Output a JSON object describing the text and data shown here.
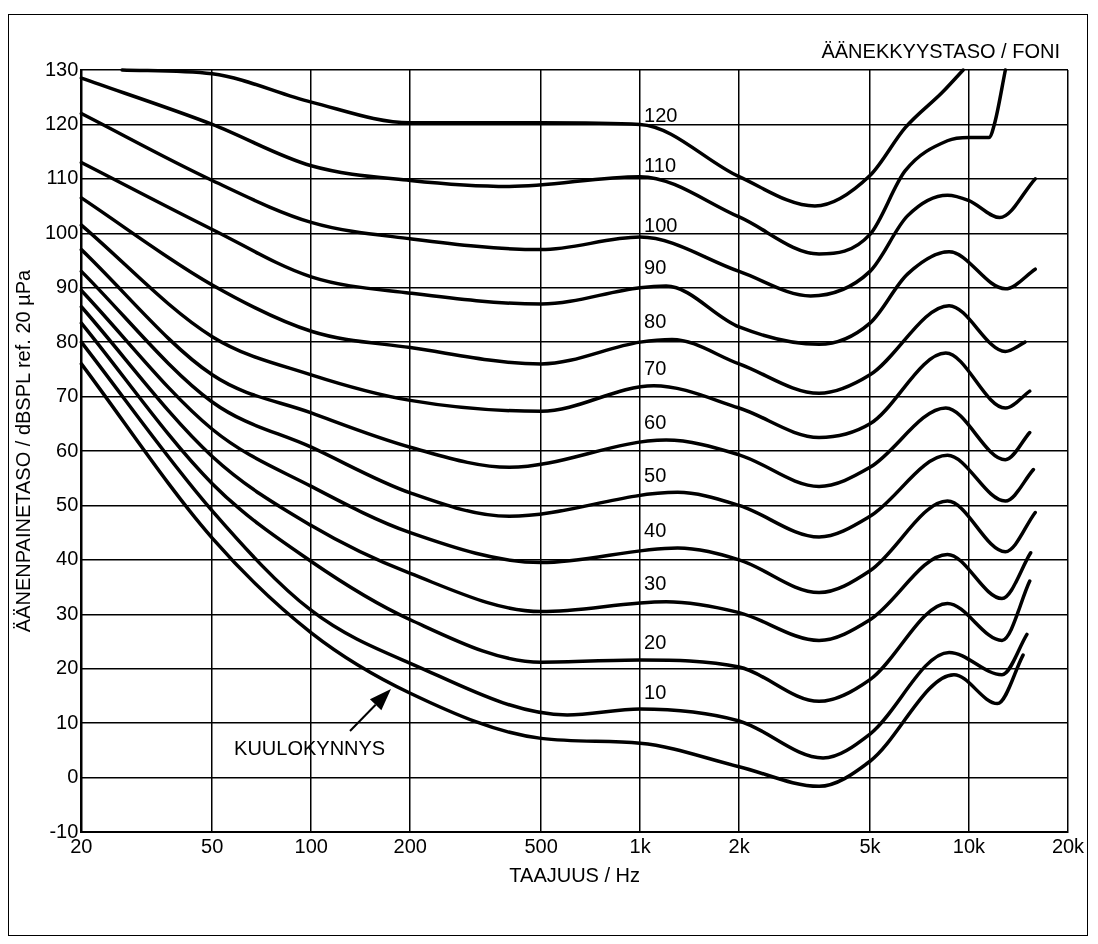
{
  "chart_data": {
    "type": "line",
    "xlabel": "TAAJUUS / Hz",
    "ylabel": "ÄÄNENPAINETASO / dBSPL ref. 20 µPa",
    "legend_title": "ÄÄNEKKYYSTASO / FONI",
    "log": "x",
    "grid": true,
    "legend": false,
    "xlim": [
      20,
      20000
    ],
    "ylim": [
      -10,
      130
    ],
    "xticks": [
      20,
      50,
      100,
      200,
      500,
      {
        "value": 1000,
        "label": "1k"
      },
      {
        "value": 2000,
        "label": "2k"
      },
      {
        "value": 5000,
        "label": "5k"
      },
      {
        "value": 10000,
        "label": "10k"
      },
      {
        "value": 20000,
        "label": "20k"
      }
    ],
    "yticks": [
      -10,
      0,
      10,
      20,
      30,
      40,
      50,
      60,
      70,
      80,
      90,
      100,
      110,
      120,
      130
    ],
    "annotations": [
      {
        "text": "KUULOKYNNYS",
        "x": 180,
        "y": 17
      }
    ],
    "series": [
      {
        "name": "120",
        "color": "#000000",
        "x": [
          26.6,
          50,
          100,
          200,
          500,
          1000,
          2000,
          3400,
          5000,
          6400,
          8300,
          9600
        ],
        "values": [
          130,
          129.3,
          124.1,
          120.3,
          120.3,
          120,
          110.4,
          105,
          110.6,
          119.4,
          125.9,
          130
        ]
      },
      {
        "name": "110",
        "color": "#000000",
        "x": [
          20,
          50,
          100,
          200,
          400,
          1000,
          2000,
          3500,
          5000,
          6400,
          8600,
          10000,
          11500,
          12000,
          12900
        ],
        "values": [
          128.5,
          120,
          112.4,
          109.7,
          108.6,
          110.4,
          103,
          96.2,
          99.8,
          111.5,
          117,
          117.6,
          117.6,
          120.5,
          130
        ]
      },
      {
        "name": "100",
        "color": "#000000",
        "x": [
          20,
          50,
          100,
          200,
          500,
          1000,
          2000,
          3300,
          5000,
          6500,
          8600,
          10000,
          12400,
          15900
        ],
        "values": [
          122,
          109.7,
          102,
          99,
          97,
          99.3,
          93,
          88.5,
          93,
          103.2,
          107,
          106,
          102.9,
          110
        ]
      },
      {
        "name": "90",
        "color": "#000000",
        "x": [
          20,
          50,
          100,
          200,
          500,
          1000,
          1200,
          2000,
          3500,
          5000,
          6500,
          8700,
          12900,
          15900
        ],
        "values": [
          113,
          100.7,
          92,
          89,
          87,
          90,
          90.3,
          82.8,
          79.6,
          83.5,
          92.5,
          96.6,
          89.8,
          93.4
        ]
      },
      {
        "name": "80",
        "color": "#000000",
        "x": [
          20,
          50,
          100,
          200,
          500,
          1000,
          1250,
          2000,
          3500,
          5000,
          8700,
          12900,
          14800
        ],
        "values": [
          106.5,
          90.5,
          82,
          79,
          76,
          80,
          80.5,
          76,
          70.6,
          74,
          86.7,
          78.3,
          80
        ]
      },
      {
        "name": "70",
        "color": "#000000",
        "x": [
          20,
          50,
          100,
          200,
          500,
          1100,
          2000,
          3500,
          5000,
          8500,
          12900,
          15300
        ],
        "values": [
          101.5,
          81,
          74,
          69.3,
          67.3,
          72,
          67.9,
          62.5,
          65,
          78,
          67.9,
          71
        ]
      },
      {
        "name": "60",
        "color": "#000000",
        "x": [
          20,
          50,
          100,
          200,
          400,
          1200,
          2000,
          3500,
          5000,
          8500,
          12900,
          15300
        ],
        "values": [
          97,
          74,
          67,
          60.7,
          57,
          62,
          59.3,
          53.5,
          57,
          67.9,
          58.4,
          63.4
        ]
      },
      {
        "name": "50",
        "color": "#000000",
        "x": [
          20,
          50,
          100,
          200,
          400,
          1300,
          2000,
          3500,
          5000,
          8600,
          12900,
          15700
        ],
        "values": [
          93,
          69,
          60.7,
          52.3,
          48,
          52.4,
          50,
          44.2,
          48,
          59.2,
          50.8,
          56.6
        ]
      },
      {
        "name": "40",
        "color": "#000000",
        "x": [
          20,
          50,
          100,
          200,
          500,
          1300,
          2000,
          3500,
          5000,
          8600,
          12900,
          15900
        ],
        "values": [
          89.5,
          64,
          53.5,
          45,
          39.5,
          42.2,
          40,
          34,
          38,
          50.8,
          41.5,
          48.7
        ]
      },
      {
        "name": "30",
        "color": "#000000",
        "x": [
          20,
          50,
          100,
          200,
          500,
          1200,
          2000,
          3500,
          5000,
          8600,
          12600,
          15400
        ],
        "values": [
          86.5,
          59,
          46.3,
          37.5,
          30.5,
          32.3,
          30.3,
          25.2,
          29,
          41,
          32.9,
          41.3
        ]
      },
      {
        "name": "20",
        "color": "#000000",
        "x": [
          20,
          50,
          100,
          200,
          500,
          1000,
          2000,
          3500,
          5000,
          8600,
          12600,
          15300
        ],
        "values": [
          83.5,
          54,
          39.7,
          29,
          21.2,
          21.6,
          20.3,
          14,
          18,
          32,
          25.2,
          36.1
        ]
      },
      {
        "name": "10",
        "color": "#000000",
        "x": [
          20,
          50,
          100,
          200,
          600,
          1000,
          2000,
          3600,
          5000,
          8700,
          12600,
          15000
        ],
        "values": [
          80,
          49,
          30.7,
          21,
          11.5,
          12.6,
          10.4,
          3.6,
          8,
          23,
          18.9,
          26.3
        ]
      },
      {
        "color": "#000000",
        "x": [
          20,
          50,
          100,
          200,
          500,
          1000,
          2000,
          3500,
          5000,
          9000,
          12200,
          14600
        ],
        "values": [
          76,
          44,
          26.6,
          15.5,
          7.2,
          6.3,
          2,
          -1.6,
          3,
          18.9,
          13.6,
          22.5
        ]
      }
    ]
  }
}
